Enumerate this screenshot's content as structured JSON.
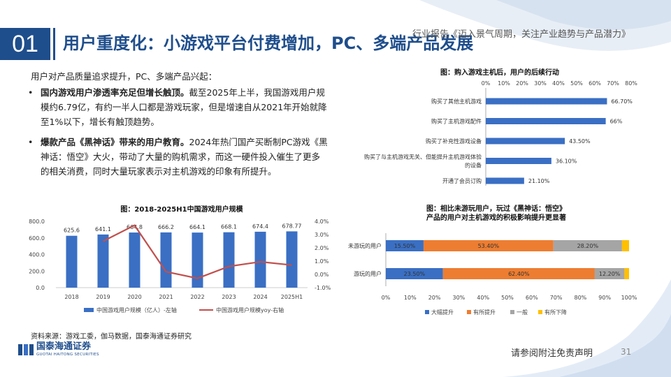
{
  "header": {
    "section_number": "01",
    "title": "用户重度化：小游戏平台付费增加，PC、多端产品发展",
    "banner": "行业报告《迈入景气周期，关注产业趋势与产品潜力》"
  },
  "body": {
    "intro": "用户对产品质量追求提升，PC、多端产品兴起：",
    "bullets": [
      {
        "marker": "•",
        "bold": "国内游戏用户渗透率充足但增长触顶。",
        "text": "截至2025年上半，我国游戏用户规模约6.79亿，有约一半人口都是游戏玩家，但是增速自从2021年开始就降至1%以下，增长有触顶趋势。"
      },
      {
        "marker": "•",
        "bold": "爆款产品《黑神话》带来的用户教育。",
        "text": "2024年热门国产买断制PC游戏《黑神话：悟空》大火，带动了大量的购机需求，而这一硬件投入催生了更多的相关消费，同时大量玩家表示对主机游戏的印象有所提升。"
      }
    ]
  },
  "chart_data": [
    {
      "type": "bar",
      "title": "图：购入游戏主机后，用户的后续行动",
      "orientation": "horizontal",
      "categories": [
        "购买了其他主机游戏",
        "购买了主机游戏配件",
        "购买了补充性游戏设备",
        "购买了与主机游戏无关、但能提升主机游戏体验的设备",
        "开通了会员订购"
      ],
      "category_lines": [
        [
          "购买了其他主机游戏"
        ],
        [
          "购买了主机游戏配件"
        ],
        [
          "购买了补充性游戏设备"
        ],
        [
          "购买了与主机游戏无关、但能提升主机游戏体验",
          "的设备"
        ],
        [
          "开通了会员订购"
        ]
      ],
      "values": [
        66.7,
        66,
        43.5,
        36.1,
        21.1
      ],
      "value_labels": [
        "66.70%",
        "66%",
        "43.50%",
        "36.10%",
        "21.10%"
      ],
      "xlim": [
        0,
        80
      ],
      "ticks": [
        "0%",
        "10%",
        "20%",
        "30%",
        "40%",
        "50%",
        "60%",
        "70%",
        "80%"
      ],
      "color": "#3a6fc4"
    },
    {
      "type": "bar+line",
      "title": "图：2018-2025H1中国游戏用户规模",
      "categories": [
        "2018",
        "2019",
        "2020",
        "2021",
        "2022",
        "2023",
        "2024",
        "2025H1"
      ],
      "series": [
        {
          "name": "中国游戏用户规模（亿人）-左轴",
          "type": "bar",
          "axis": "left",
          "color": "#3a6fc4",
          "values": [
            625.6,
            641.1,
            664.8,
            666.2,
            664.1,
            668.1,
            674.4,
            678.77
          ],
          "labels": [
            "625.6",
            "641.1",
            "664.8",
            "666.2",
            "664.1",
            "668.1",
            "674.4",
            "678.77"
          ]
        },
        {
          "name": "中国游戏用户规模yoy-右轴",
          "type": "line",
          "axis": "right",
          "color": "#c0504d",
          "values": [
            null,
            2.5,
            3.7,
            0.2,
            -0.3,
            0.6,
            0.95,
            0.7
          ]
        }
      ],
      "ylim_left": [
        0,
        800
      ],
      "yticks_left": [
        "0.0",
        "200.0",
        "400.0",
        "600.0",
        "800.0"
      ],
      "ylim_right": [
        -1,
        4
      ],
      "yticks_right": [
        "-1.0%",
        "0.0%",
        "1.0%",
        "2.0%",
        "3.0%",
        "4.0%"
      ]
    },
    {
      "type": "stacked-bar",
      "title": "图：相比未游玩用户，玩过《黑神话：悟空》产品的用户对主机游戏的积极影响提升更显著",
      "title_lines": [
        "图：相比未游玩用户，玩过《黑神话：悟空》",
        "产品的用户对主机游戏的积极影响提升更显著"
      ],
      "orientation": "horizontal",
      "categories": [
        "未游玩的用户",
        "游玩的用户"
      ],
      "series": [
        {
          "name": "大幅提升",
          "color": "#3a6fc4",
          "values": [
            15.5,
            23.5
          ],
          "labels": [
            "15.50%",
            "23.50%"
          ]
        },
        {
          "name": "有所提升",
          "color": "#ed7d31",
          "values": [
            53.4,
            62.4
          ],
          "labels": [
            "53.40%",
            "62.40%"
          ]
        },
        {
          "name": "一般",
          "color": "#a5a5a5",
          "values": [
            28.2,
            12.2
          ],
          "labels": [
            "28.20%",
            "12.20%"
          ]
        },
        {
          "name": "有所下降",
          "color": "#ffc000",
          "values": [
            2.9,
            1.9
          ],
          "labels": [
            "",
            ""
          ]
        }
      ],
      "xlim": [
        0,
        100
      ],
      "ticks": [
        "0%",
        "10%",
        "20%",
        "30%",
        "40%",
        "50%",
        "60%",
        "70%",
        "80%",
        "90%",
        "100%"
      ]
    }
  ],
  "footer": {
    "source": "资料来源：游戏工委，伽马数据，国泰海通证券研究",
    "logo_cn": "国泰海通证券",
    "logo_en": "GUOTAI HAITONG SECURITIES",
    "disclaimer": "请参阅附注免责声明",
    "page_number": "31"
  }
}
